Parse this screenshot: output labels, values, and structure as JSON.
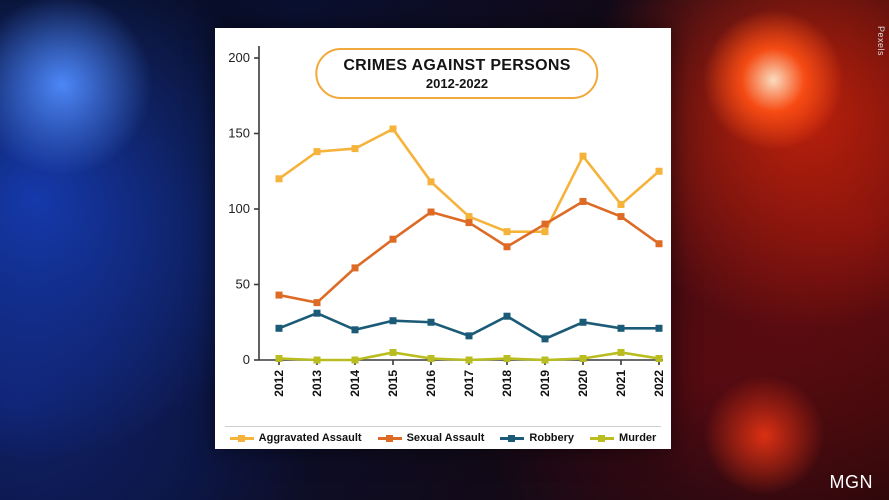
{
  "credits": {
    "photo": "Pexels",
    "source": "MGN"
  },
  "chart_data": {
    "type": "line",
    "title": "CRIMES AGAINST PERSONS",
    "subtitle": "2012-2022",
    "categories": [
      "2012",
      "2013",
      "2014",
      "2015",
      "2016",
      "2017",
      "2018",
      "2019",
      "2020",
      "2021",
      "2022"
    ],
    "ylim": [
      0,
      200
    ],
    "yticks": [
      0,
      50,
      100,
      150,
      200
    ],
    "grid": false,
    "legend_position": "bottom",
    "marker": "square",
    "series": [
      {
        "name": "Aggravated Assault",
        "color": "#F6B33C",
        "values": [
          120,
          138,
          140,
          153,
          118,
          95,
          85,
          85,
          135,
          103,
          125
        ]
      },
      {
        "name": "Sexual Assault",
        "color": "#DD6B26",
        "values": [
          43,
          38,
          61,
          80,
          98,
          91,
          75,
          90,
          105,
          95,
          77
        ]
      },
      {
        "name": "Robbery",
        "color": "#1B5B77",
        "values": [
          21,
          31,
          20,
          26,
          25,
          16,
          29,
          14,
          25,
          21,
          21
        ]
      },
      {
        "name": "Murder",
        "color": "#B9BD20",
        "values": [
          1,
          0,
          0,
          5,
          1,
          0,
          1,
          0,
          1,
          5,
          1
        ]
      }
    ]
  }
}
